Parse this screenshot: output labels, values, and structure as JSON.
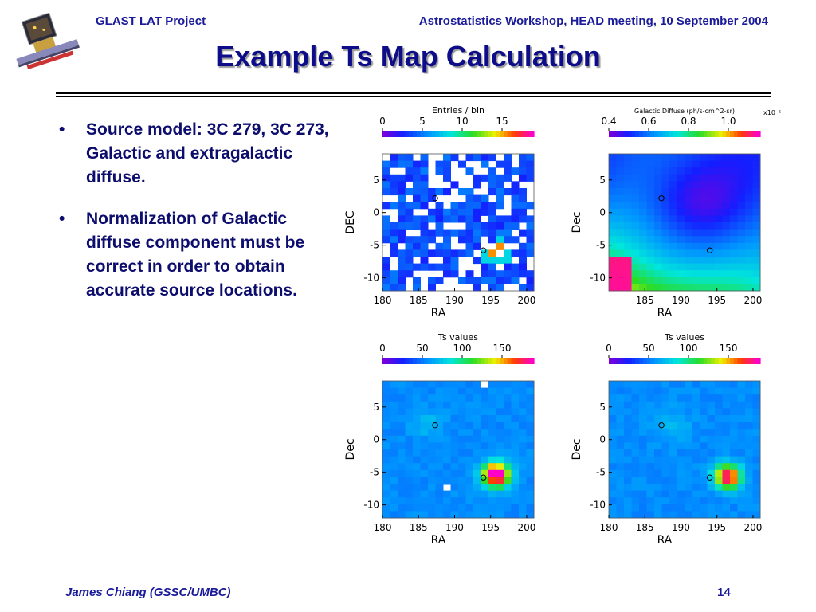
{
  "header": {
    "left": "GLAST LAT Project",
    "right": "Astrostatistics Workshop, HEAD meeting, 10 September 2004"
  },
  "title": "Example Ts Map Calculation",
  "bullets": [
    "Source model: 3C 279, 3C 273, Galactic and extragalactic diffuse.",
    "Normalization of Galactic diffuse component must be correct in order to obtain accurate source locations."
  ],
  "footer": {
    "author": "James Chiang (GSSC/UMBC)",
    "page": "14"
  },
  "bullet_glyph": "•",
  "icons": [
    "glast-satellite-logo-icon"
  ],
  "chart_data": [
    {
      "type": "heatmap",
      "colorbar_title": "Entries / bin",
      "colorbar_ticks": [
        "0",
        "5",
        "10",
        "15"
      ],
      "x_ticks": [
        "180",
        "185",
        "190",
        "195",
        "200"
      ],
      "y_ticks": [
        "5",
        "0",
        "-5",
        "-10"
      ],
      "xlabel": "RA",
      "ylabel": "DEC",
      "colorbar_exponent": "",
      "markers": [
        {
          "ra": 187.3,
          "dec": 2.2
        },
        {
          "ra": 194.0,
          "dec": -5.8
        }
      ]
    },
    {
      "type": "heatmap",
      "colorbar_title": "Galactic Diffuse (ph/s-cm^2-sr)",
      "colorbar_ticks": [
        "0.4",
        "0.6",
        "0.8",
        "1.0"
      ],
      "x_ticks": [
        "185",
        "190",
        "195",
        "200"
      ],
      "y_ticks": [
        "5",
        "0",
        "-5",
        "-10"
      ],
      "xlabel": "RA",
      "ylabel": "Dec",
      "colorbar_exponent": "x10⁻⁵",
      "markers": [
        {
          "ra": 187.3,
          "dec": 2.2
        },
        {
          "ra": 194.0,
          "dec": -5.8
        }
      ]
    },
    {
      "type": "heatmap",
      "colorbar_title": "Ts values",
      "colorbar_ticks": [
        "0",
        "50",
        "100",
        "150"
      ],
      "x_ticks": [
        "180",
        "185",
        "190",
        "195",
        "200"
      ],
      "y_ticks": [
        "5",
        "0",
        "-5",
        "-10"
      ],
      "xlabel": "RA",
      "ylabel": "Dec",
      "colorbar_exponent": "",
      "markers": [
        {
          "ra": 187.3,
          "dec": 2.2
        },
        {
          "ra": 194.0,
          "dec": -5.8
        }
      ]
    },
    {
      "type": "heatmap",
      "colorbar_title": "Ts values",
      "colorbar_ticks": [
        "0",
        "50",
        "100",
        "150"
      ],
      "x_ticks": [
        "180",
        "185",
        "190",
        "195",
        "200"
      ],
      "y_ticks": [
        "5",
        "0",
        "-5",
        "-10"
      ],
      "xlabel": "RA",
      "ylabel": "Dec",
      "colorbar_exponent": "",
      "markers": [
        {
          "ra": 187.3,
          "dec": 2.2
        },
        {
          "ra": 194.0,
          "dec": -5.8
        }
      ]
    }
  ],
  "colors": {
    "header_text": "#1a1a9a",
    "title_text": "#0d0d8a",
    "body_text": "#0d0d6e"
  }
}
